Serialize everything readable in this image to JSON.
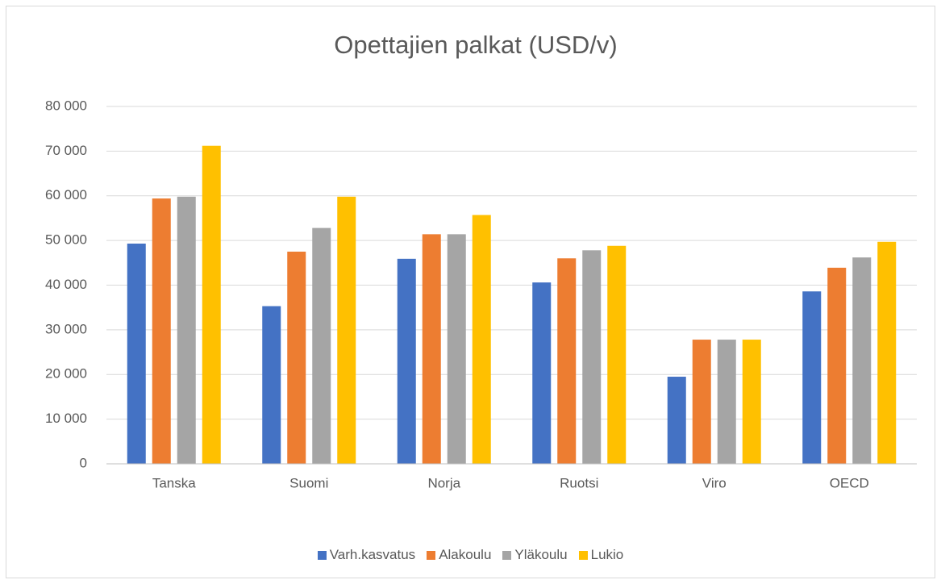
{
  "chart_data": {
    "type": "bar",
    "title": "Opettajien palkat (USD/v)",
    "categories": [
      "Tanska",
      "Suomi",
      "Norja",
      "Ruotsi",
      "Viro",
      "OECD"
    ],
    "series": [
      {
        "name": "Varh.kasvatus",
        "color": "#4472c4",
        "values": [
          49300,
          35300,
          45900,
          40600,
          19500,
          38600
        ]
      },
      {
        "name": "Alakoulu",
        "color": "#ed7d31",
        "values": [
          59400,
          47500,
          51400,
          46000,
          27800,
          43900
        ]
      },
      {
        "name": "Yläkoulu",
        "color": "#a5a5a5",
        "values": [
          59800,
          52800,
          51400,
          47800,
          27800,
          46200
        ]
      },
      {
        "name": "Lukio",
        "color": "#ffc000",
        "values": [
          71200,
          59800,
          55700,
          48800,
          27800,
          49700
        ]
      }
    ],
    "ylim": [
      0,
      80000
    ],
    "yticks": [
      0,
      {
        "value": 10000,
        "label": "10 000"
      },
      {
        "value": 20000,
        "label": "20 000"
      },
      {
        "value": 30000,
        "label": "30 000"
      },
      {
        "value": 40000,
        "label": "40 000"
      },
      {
        "value": 50000,
        "label": "50 000"
      },
      {
        "value": 60000,
        "label": "60 000"
      },
      {
        "value": 70000,
        "label": "70 000"
      },
      {
        "value": 80000,
        "label": "80 000"
      }
    ],
    "grid": true,
    "legend": "bottom"
  }
}
